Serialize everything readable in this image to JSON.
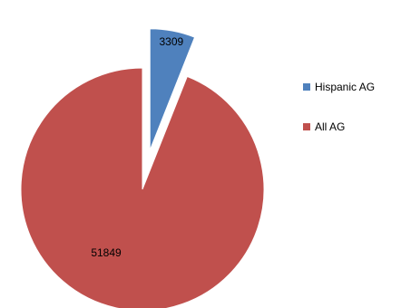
{
  "chart_data": {
    "type": "pie",
    "categories": [
      "Hispanic AG",
      "All AG"
    ],
    "values": [
      3309,
      51849
    ],
    "data_labels": [
      "3309",
      "51849"
    ],
    "exploded": [
      "Hispanic AG"
    ],
    "colors": [
      "#4F81BD",
      "#C0504D"
    ],
    "legend_position": "right"
  }
}
